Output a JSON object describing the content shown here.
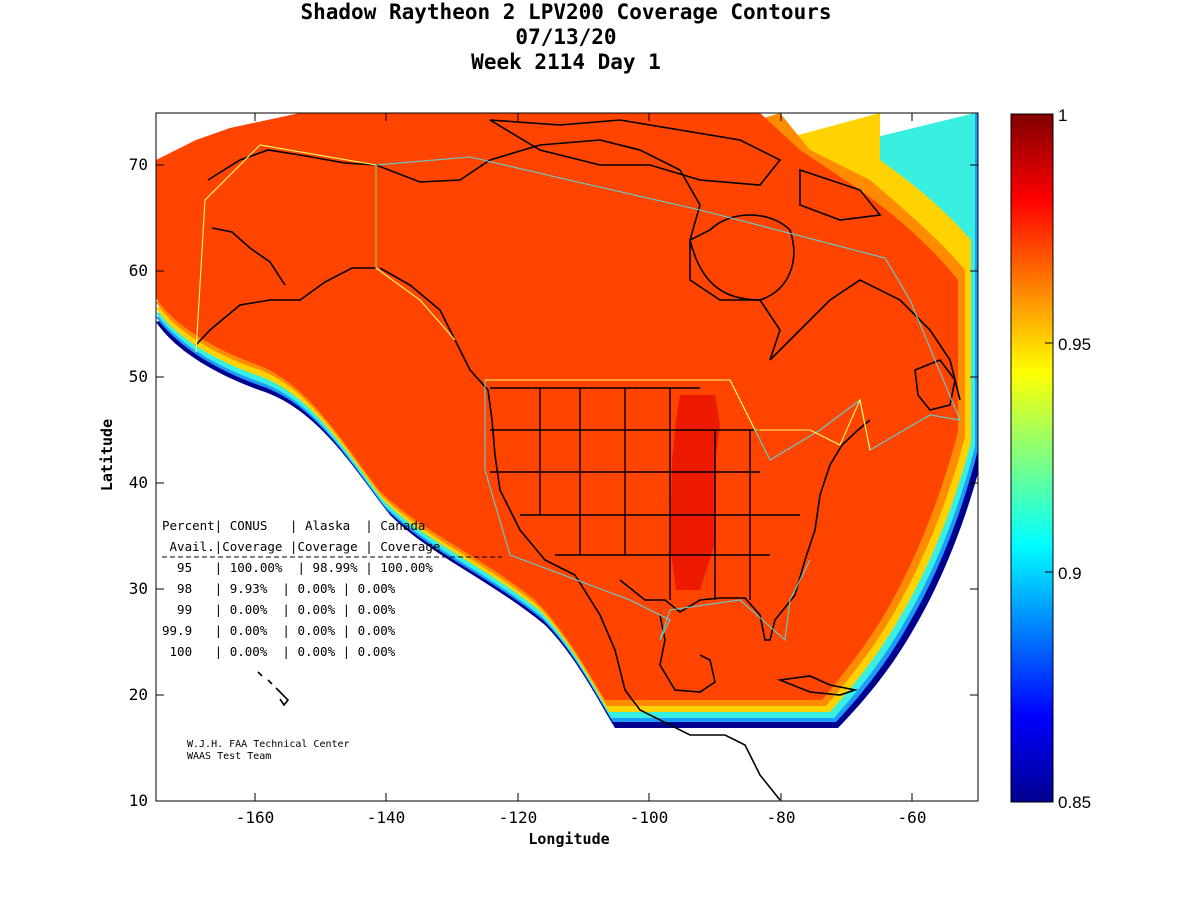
{
  "title": {
    "line1": "Shadow Raytheon 2 LPV200 Coverage Contours",
    "line2": "07/13/20",
    "line3": "Week 2114 Day 1"
  },
  "axes": {
    "xlabel": "Longitude",
    "ylabel": "Latitude",
    "xlim": [
      -175,
      -50
    ],
    "ylim": [
      10,
      75
    ],
    "xticks": [
      "-160",
      "-140",
      "-120",
      "-100",
      "-80",
      "-60"
    ],
    "yticks": [
      "10",
      "20",
      "30",
      "40",
      "50",
      "60",
      "70"
    ]
  },
  "colorbar": {
    "range": [
      0.85,
      1
    ],
    "ticks": [
      "1",
      "0.95",
      "0.9",
      "0.85"
    ],
    "colormap": "jet"
  },
  "coverage_table": {
    "header1": "Percent| CONUS   | Alaska  | Canada",
    "header2": " Avail.|Coverage |Coverage | Coverage",
    "rows": [
      "  95   | 100.00%  | 98.99% | 100.00%",
      "  98   | 9.93%  | 0.00% | 0.00%",
      "  99   | 0.00%  | 0.00% | 0.00%",
      "99.9   | 0.00%  | 0.00% | 0.00%",
      " 100   | 0.00%  | 0.00% | 0.00%"
    ]
  },
  "credit": {
    "line1": "W.J.H. FAA Technical Center",
    "line2": "WAAS Test Team"
  },
  "colors": {
    "coverage_main": "#ff4400",
    "coverage_high": "#ee1a00",
    "colorbar_top": "#800000",
    "colorbar_bottom": "#00008f"
  }
}
